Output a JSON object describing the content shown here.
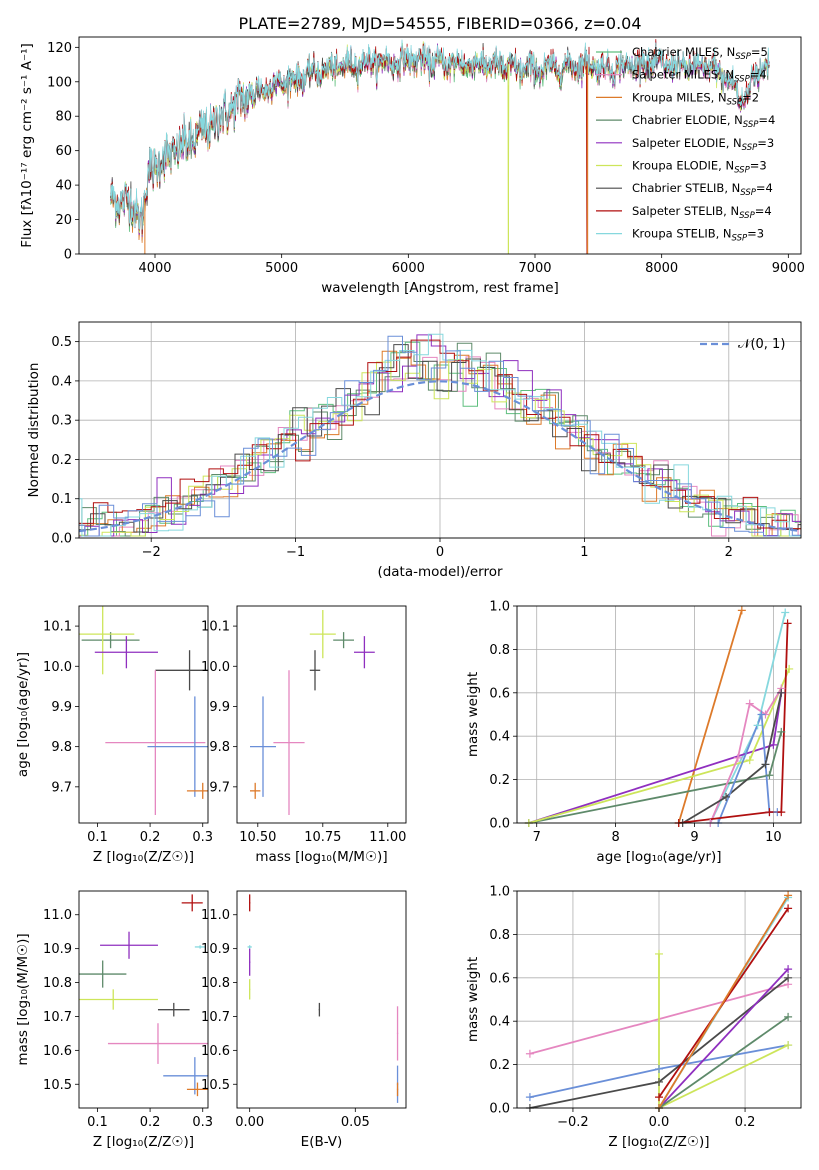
{
  "colors": {
    "chabrier_miles": "#5fbf7f",
    "salpeter_miles": "#e587c0",
    "kroupa_miles": "#dd7a2a",
    "chabrier_elodie": "#5e8a6a",
    "salpeter_elodie": "#8f2fbf",
    "kroupa_elodie": "#cde55a",
    "chabrier_stelib": "#4a4a4a",
    "salpeter_stelib": "#b00f0f",
    "kroupa_stelib": "#86d8de",
    "mgrey": "#7f7f7f",
    "blue": "#6a8fd8"
  },
  "chart_data": [
    {
      "type": "line",
      "title": "PLATE=2789, MJD=54555, FIBERID=0366, z=0.04",
      "xlabel": "wavelength [Angstrom, rest frame]",
      "ylabel": "Flux [fλ10⁻¹⁷ erg cm⁻² s⁻¹ A⁻¹]",
      "xlim": [
        3400,
        9100
      ],
      "ylim": [
        0,
        126
      ],
      "xticks": [
        4000,
        5000,
        6000,
        7000,
        8000,
        9000
      ],
      "yticks": [
        0,
        20,
        40,
        60,
        80,
        100,
        120
      ],
      "legend_position": "top-right",
      "legend": [
        {
          "key": "chabrier_miles",
          "base": "Chabrier MILES, N",
          "sub": "SSP",
          "tail": "=5"
        },
        {
          "key": "salpeter_miles",
          "base": "Salpeter MILES, N",
          "sub": "SSP",
          "tail": "=4"
        },
        {
          "key": "kroupa_miles",
          "base": "Kroupa MILES, N",
          "sub": "SSP",
          "tail": "=2"
        },
        {
          "key": "chabrier_elodie",
          "base": "Chabrier ELODIE, N",
          "sub": "SSP",
          "tail": "=4"
        },
        {
          "key": "salpeter_elodie",
          "base": "Salpeter ELODIE, N",
          "sub": "SSP",
          "tail": "=3"
        },
        {
          "key": "kroupa_elodie",
          "base": "Kroupa ELODIE, N",
          "sub": "SSP",
          "tail": "=3"
        },
        {
          "key": "chabrier_stelib",
          "base": "Chabrier STELIB, N",
          "sub": "SSP",
          "tail": "=4"
        },
        {
          "key": "salpeter_stelib",
          "base": "Salpeter STELIB, N",
          "sub": "SSP",
          "tail": "=4"
        },
        {
          "key": "kroupa_stelib",
          "base": "Kroupa STELIB, N",
          "sub": "SSP",
          "tail": "=3"
        }
      ],
      "continuum": [
        [
          3650,
          32
        ],
        [
          3800,
          30
        ],
        [
          3900,
          20
        ],
        [
          3950,
          48
        ],
        [
          4100,
          57
        ],
        [
          4300,
          66
        ],
        [
          4500,
          78
        ],
        [
          4700,
          90
        ],
        [
          4900,
          97
        ],
        [
          5100,
          101
        ],
        [
          5300,
          106
        ],
        [
          5500,
          109
        ],
        [
          5700,
          111
        ],
        [
          5900,
          111
        ],
        [
          6000,
          113
        ],
        [
          6200,
          111
        ],
        [
          6400,
          110
        ],
        [
          6600,
          110
        ],
        [
          6800,
          108
        ],
        [
          7000,
          107
        ],
        [
          7200,
          108
        ],
        [
          7400,
          110
        ],
        [
          7600,
          107
        ],
        [
          7800,
          110
        ],
        [
          8000,
          110
        ],
        [
          8200,
          108
        ],
        [
          8400,
          108
        ],
        [
          8600,
          95
        ],
        [
          8800,
          108
        ]
      ]
    },
    {
      "type": "step",
      "xlabel": "(data-model)/error",
      "ylabel": "Normed distribution",
      "xlim": [
        -2.5,
        2.5
      ],
      "ylim": [
        0,
        0.55
      ],
      "xticks": [
        -2,
        -1,
        0,
        1,
        2
      ],
      "yticks": [
        0,
        0.1,
        0.2,
        0.3,
        0.4,
        0.5
      ],
      "grid": true,
      "legend": [
        {
          "base": "𝒩(0, 1)"
        }
      ],
      "legend_position": "top-right",
      "bin_width": 0.1
    },
    {
      "type": "errorbar",
      "xlabel": "Z [log₁₀(Z/Z☉)]",
      "ylabel": "age  [log₁₀(age/yr)]",
      "xlim": [
        0.065,
        0.31
      ],
      "ylim": [
        9.61,
        10.15
      ],
      "xticks": [
        0.1,
        0.2,
        0.3
      ],
      "yticks": [
        9.7,
        9.8,
        9.9,
        10.0,
        10.1
      ],
      "points": [
        {
          "key": "salpeter_stelib",
          "x": 0.295,
          "y": 10.165,
          "xerr": 0.012,
          "yerr": 0.012
        },
        {
          "key": "chabrier_elodie",
          "x": 0.125,
          "y": 10.065,
          "xerr": 0.055,
          "yerr": 0.02
        },
        {
          "key": "kroupa_elodie",
          "x": 0.11,
          "y": 10.08,
          "xerr": 0.06,
          "yerr": 0.1
        },
        {
          "key": "salpeter_elodie",
          "x": 0.155,
          "y": 10.035,
          "xerr": 0.06,
          "yerr": 0.04
        },
        {
          "key": "chabrier_stelib",
          "x": 0.275,
          "y": 9.99,
          "xerr": 0.065,
          "yerr": 0.05
        },
        {
          "key": "salpeter_miles",
          "x": 0.21,
          "y": 9.81,
          "xerr": 0.095,
          "yerr": 0.18
        },
        {
          "key": "blue",
          "x": 0.285,
          "y": 9.8,
          "xerr": 0.09,
          "yerr": 0.125
        },
        {
          "key": "kroupa_miles",
          "x": 0.3,
          "y": 9.69,
          "xerr": 0.03,
          "yerr": 0.02
        },
        {
          "key": "kroupa_stelib",
          "x": 0.29,
          "y": 10.16,
          "xerr": 0.012,
          "yerr": 0.01
        }
      ]
    },
    {
      "type": "errorbar",
      "xlabel": "mass [log₁₀(M/M☉)]",
      "xlim": [
        10.42,
        11.07
      ],
      "ylim": [
        9.61,
        10.15
      ],
      "xticks": [
        10.5,
        10.75,
        11.0
      ],
      "yticks": [
        9.7,
        9.8,
        9.9,
        10.0,
        10.1
      ],
      "points": [
        {
          "key": "kroupa_stelib",
          "x": 10.905,
          "y": 10.16,
          "xerr": 0.02,
          "yerr": 0.005
        },
        {
          "key": "salpeter_stelib",
          "x": 11.035,
          "y": 10.165,
          "xerr": 0.03,
          "yerr": 0.012
        },
        {
          "key": "kroupa_elodie",
          "x": 10.75,
          "y": 10.08,
          "xerr": 0.05,
          "yerr": 0.06
        },
        {
          "key": "chabrier_elodie",
          "x": 10.83,
          "y": 10.065,
          "xerr": 0.04,
          "yerr": 0.02
        },
        {
          "key": "salpeter_elodie",
          "x": 10.91,
          "y": 10.035,
          "xerr": 0.04,
          "yerr": 0.04
        },
        {
          "key": "chabrier_stelib",
          "x": 10.72,
          "y": 9.99,
          "xerr": 0.02,
          "yerr": 0.05
        },
        {
          "key": "blue",
          "x": 10.52,
          "y": 9.8,
          "xerr": 0.05,
          "yerr": 0.125
        },
        {
          "key": "salpeter_miles",
          "x": 10.62,
          "y": 9.81,
          "xerr": 0.06,
          "yerr": 0.18
        },
        {
          "key": "kroupa_miles",
          "x": 10.49,
          "y": 9.69,
          "xerr": 0.02,
          "yerr": 0.02
        }
      ]
    },
    {
      "type": "line",
      "xlabel": "age  [log₁₀(age/yr)]",
      "ylabel": "mass weight",
      "xlim": [
        6.75,
        10.35
      ],
      "ylim": [
        0,
        1
      ],
      "xticks": [
        7,
        8,
        9,
        10
      ],
      "yticks": [
        0,
        0.2,
        0.4,
        0.6,
        0.8,
        1.0
      ],
      "grid": true,
      "series": [
        {
          "key": "kroupa_miles",
          "points": [
            [
              8.8,
              0
            ],
            [
              9.6,
              0.98
            ]
          ]
        },
        {
          "key": "kroupa_stelib",
          "points": [
            [
              9.2,
              0
            ],
            [
              9.8,
              0.45
            ],
            [
              10.15,
              0.97
            ]
          ]
        },
        {
          "key": "salpeter_elodie",
          "points": [
            [
              6.9,
              0
            ],
            [
              10.0,
              0.36
            ],
            [
              10.1,
              0.6
            ]
          ]
        },
        {
          "key": "chabrier_elodie",
          "points": [
            [
              6.9,
              0
            ],
            [
              9.95,
              0.22
            ],
            [
              10.1,
              0.42
            ]
          ]
        },
        {
          "key": "kroupa_elodie",
          "points": [
            [
              6.9,
              0
            ],
            [
              9.7,
              0.29
            ],
            [
              10.2,
              0.71
            ]
          ]
        },
        {
          "key": "salpeter_miles",
          "points": [
            [
              9.2,
              0
            ],
            [
              9.55,
              0.3
            ],
            [
              9.7,
              0.55
            ],
            [
              9.9,
              0.5
            ],
            [
              10.1,
              0.62
            ]
          ]
        },
        {
          "key": "chabrier_stelib",
          "points": [
            [
              8.85,
              0
            ],
            [
              9.4,
              0.12
            ],
            [
              9.9,
              0.27
            ],
            [
              10.1,
              0.6
            ]
          ]
        },
        {
          "key": "blue",
          "points": [
            [
              9.3,
              0
            ],
            [
              9.85,
              0.5
            ],
            [
              9.95,
              0.05
            ],
            [
              10.05,
              0.05
            ]
          ]
        },
        {
          "key": "salpeter_stelib",
          "points": [
            [
              8.8,
              0
            ],
            [
              9.95,
              0.05
            ],
            [
              10.1,
              0.05
            ],
            [
              10.18,
              0.92
            ]
          ]
        }
      ]
    },
    {
      "type": "errorbar",
      "xlabel": "Z [log₁₀(Z/Z☉)]",
      "ylabel": "mass [log₁₀(M/M☉)]",
      "xlim": [
        0.065,
        0.31
      ],
      "ylim": [
        10.43,
        11.07
      ],
      "xticks": [
        0.1,
        0.2,
        0.3
      ],
      "yticks": [
        10.5,
        10.6,
        10.7,
        10.8,
        10.9,
        11.0
      ],
      "points": [
        {
          "key": "salpeter_stelib",
          "x": 0.28,
          "y": 11.035,
          "xerr": 0.02,
          "yerr": 0.025
        },
        {
          "key": "kroupa_stelib",
          "x": 0.295,
          "y": 10.905,
          "xerr": 0.01,
          "yerr": 0.005
        },
        {
          "key": "salpeter_elodie",
          "x": 0.16,
          "y": 10.91,
          "xerr": 0.055,
          "yerr": 0.04
        },
        {
          "key": "chabrier_elodie",
          "x": 0.11,
          "y": 10.825,
          "xerr": 0.045,
          "yerr": 0.04
        },
        {
          "key": "kroupa_elodie",
          "x": 0.13,
          "y": 10.75,
          "xerr": 0.085,
          "yerr": 0.03
        },
        {
          "key": "chabrier_stelib",
          "x": 0.245,
          "y": 10.72,
          "xerr": 0.03,
          "yerr": 0.02
        },
        {
          "key": "salpeter_miles",
          "x": 0.215,
          "y": 10.62,
          "xerr": 0.095,
          "yerr": 0.06
        },
        {
          "key": "blue",
          "x": 0.285,
          "y": 10.525,
          "xerr": 0.06,
          "yerr": 0.055
        },
        {
          "key": "kroupa_miles",
          "x": 0.29,
          "y": 10.485,
          "xerr": 0.02,
          "yerr": 0.02
        }
      ]
    },
    {
      "type": "errorbar",
      "xlabel": "E(B-V)",
      "xlim": [
        -0.006,
        0.074
      ],
      "ylim": [
        10.43,
        11.07
      ],
      "xticks": [
        0.0,
        0.05
      ],
      "yticks": [
        10.5,
        10.6,
        10.7,
        10.8,
        10.9,
        11.0
      ],
      "points": [
        {
          "key": "salpeter_stelib",
          "x": 0.0,
          "y": 11.035,
          "xerr": 0.0003,
          "yerr": 0.025
        },
        {
          "key": "kroupa_stelib",
          "x": 0.0,
          "y": 10.905,
          "xerr": 0.001,
          "yerr": 0.005
        },
        {
          "key": "salpeter_elodie",
          "x": 0.0,
          "y": 10.86,
          "xerr": 0.0003,
          "yerr": 0.04
        },
        {
          "key": "kroupa_elodie",
          "x": 0.0,
          "y": 10.78,
          "xerr": 0.0003,
          "yerr": 0.03
        },
        {
          "key": "chabrier_stelib",
          "x": 0.033,
          "y": 10.72,
          "xerr": 0.0003,
          "yerr": 0.02
        },
        {
          "key": "salpeter_miles",
          "x": 0.07,
          "y": 10.65,
          "xerr": 0.0003,
          "yerr": 0.08
        },
        {
          "key": "blue",
          "x": 0.07,
          "y": 10.5,
          "xerr": 0.0003,
          "yerr": 0.055
        },
        {
          "key": "kroupa_miles",
          "x": 0.07,
          "y": 10.485,
          "xerr": 0.0003,
          "yerr": 0.02
        }
      ]
    },
    {
      "type": "line",
      "xlabel": "Z [log₁₀(Z/Z☉)]",
      "ylabel": "mass weight",
      "xlim": [
        -0.33,
        0.33
      ],
      "ylim": [
        0,
        1
      ],
      "xticks": [
        -0.2,
        0.0,
        0.2
      ],
      "yticks": [
        0,
        0.2,
        0.4,
        0.6,
        0.8,
        1.0
      ],
      "grid": true,
      "series": [
        {
          "key": "salpeter_miles",
          "points": [
            [
              -0.3,
              0.25
            ],
            [
              0.3,
              0.57
            ]
          ]
        },
        {
          "key": "blue",
          "points": [
            [
              -0.3,
              0.05
            ],
            [
              0.0,
              0.18
            ],
            [
              0.3,
              0.29
            ]
          ]
        },
        {
          "key": "chabrier_stelib",
          "points": [
            [
              -0.3,
              0.0
            ],
            [
              0.0,
              0.12
            ],
            [
              0.3,
              0.6
            ]
          ]
        },
        {
          "key": "kroupa_elodie",
          "points": [
            [
              0.0,
              0.71
            ],
            [
              0.0,
              0.0
            ],
            [
              0.3,
              0.29
            ]
          ]
        },
        {
          "key": "salpeter_elodie",
          "points": [
            [
              0.0,
              0.0
            ],
            [
              0.3,
              0.64
            ]
          ]
        },
        {
          "key": "chabrier_elodie",
          "points": [
            [
              0.0,
              0.0
            ],
            [
              0.3,
              0.42
            ]
          ]
        },
        {
          "key": "kroupa_stelib",
          "points": [
            [
              0.0,
              0.0
            ],
            [
              0.3,
              0.97
            ]
          ]
        },
        {
          "key": "salpeter_stelib",
          "points": [
            [
              0.0,
              0.05
            ],
            [
              0.3,
              0.92
            ]
          ]
        },
        {
          "key": "kroupa_miles",
          "points": [
            [
              0.0,
              0.0
            ],
            [
              0.3,
              0.98
            ]
          ]
        }
      ]
    }
  ]
}
